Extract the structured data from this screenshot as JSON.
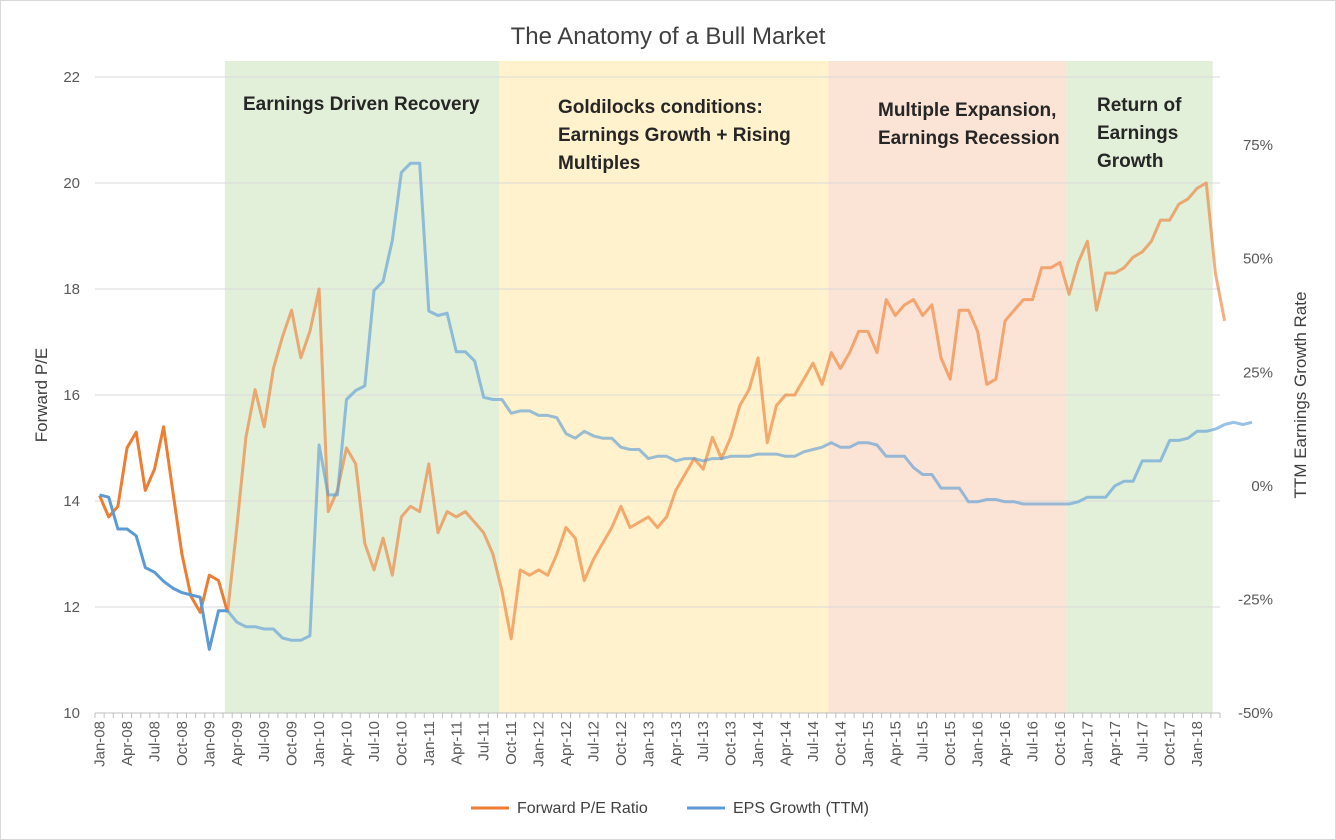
{
  "chart_data": {
    "type": "line",
    "title": "The Anatomy of a Bull Market",
    "ylabel": "Forward P/E",
    "y2label": "TTM Earnings Growth Rate",
    "ylim": [
      10,
      22
    ],
    "y2lim": [
      -0.5,
      0.9
    ],
    "yticks": [
      "10",
      "12",
      "14",
      "16",
      "18",
      "20",
      "22"
    ],
    "y2ticks": [
      "-50%",
      "-25%",
      "0%",
      "25%",
      "50%",
      "75%"
    ],
    "x_start": "Jan-08",
    "x_end": "Mar-18",
    "xticks": [
      "Jan-08",
      "Apr-08",
      "Jul-08",
      "Oct-08",
      "Jan-09",
      "Apr-09",
      "Jul-09",
      "Oct-09",
      "Jan-10",
      "Apr-10",
      "Jul-10",
      "Oct-10",
      "Jan-11",
      "Apr-11",
      "Jul-11",
      "Oct-11",
      "Jan-12",
      "Apr-12",
      "Jul-12",
      "Oct-12",
      "Jan-13",
      "Apr-13",
      "Jul-13",
      "Oct-13",
      "Jan-14",
      "Apr-14",
      "Jul-14",
      "Oct-14",
      "Jan-15",
      "Apr-15",
      "Jul-15",
      "Oct-15",
      "Jan-16",
      "Apr-16",
      "Jul-16",
      "Oct-16",
      "Jan-17",
      "Apr-17",
      "Jul-17",
      "Oct-17",
      "Jan-18"
    ],
    "legend_position": "bottom",
    "regions": [
      {
        "label": "Earnings Driven Recovery",
        "start": "Mar-09",
        "end": "Sep-11",
        "color": "#e2efd9"
      },
      {
        "label": "Goldilocks conditions: Earnings Growth + Rising Multiples",
        "start": "Sep-11",
        "end": "Sep-14",
        "color": "#fff2cc"
      },
      {
        "label": "Multiple Expansion, Earnings Recession",
        "start": "Sep-14",
        "end": "Nov-16",
        "color": "#fbe4d5"
      },
      {
        "label": "Return of Earnings Growth",
        "start": "Nov-16",
        "end": "Mar-18",
        "color": "#e2efd9"
      }
    ],
    "series": [
      {
        "name": "Forward P/E Ratio",
        "color": "#ed7d31",
        "axis": "left",
        "values": [
          14.1,
          13.7,
          13.9,
          15.0,
          15.3,
          14.2,
          14.6,
          15.4,
          14.2,
          13.0,
          12.2,
          11.9,
          12.6,
          12.5,
          11.9,
          13.5,
          15.2,
          16.1,
          15.4,
          16.5,
          17.1,
          17.6,
          16.7,
          17.2,
          18.0,
          13.8,
          14.2,
          15.0,
          14.7,
          13.2,
          12.7,
          13.3,
          12.6,
          13.7,
          13.9,
          13.8,
          14.7,
          13.4,
          13.8,
          13.7,
          13.8,
          13.6,
          13.4,
          13.0,
          12.3,
          11.4,
          12.7,
          12.6,
          12.7,
          12.6,
          13.0,
          13.5,
          13.3,
          12.5,
          12.9,
          13.2,
          13.5,
          13.9,
          13.5,
          13.6,
          13.7,
          13.5,
          13.7,
          14.2,
          14.5,
          14.8,
          14.6,
          15.2,
          14.8,
          15.2,
          15.8,
          16.1,
          16.7,
          15.1,
          15.8,
          16.0,
          16.0,
          16.3,
          16.6,
          16.2,
          16.8,
          16.5,
          16.8,
          17.2,
          17.2,
          16.8,
          17.8,
          17.5,
          17.7,
          17.8,
          17.5,
          17.7,
          16.7,
          16.3,
          17.6,
          17.6,
          17.2,
          16.2,
          16.3,
          17.4,
          17.6,
          17.8,
          17.8,
          18.4,
          18.4,
          18.5,
          17.9,
          18.5,
          18.9,
          17.6,
          18.3,
          18.3,
          18.4,
          18.6,
          18.7,
          18.9,
          19.3,
          19.3,
          19.6,
          19.7,
          19.9,
          20.0,
          18.3,
          17.4
        ]
      },
      {
        "name": "EPS Growth (TTM)",
        "color": "#5b9bd5",
        "axis": "right",
        "values": [
          -0.02,
          -0.025,
          -0.095,
          -0.095,
          -0.11,
          -0.18,
          -0.19,
          -0.21,
          -0.225,
          -0.235,
          -0.24,
          -0.245,
          -0.36,
          -0.275,
          -0.275,
          -0.3,
          -0.31,
          -0.31,
          -0.315,
          -0.315,
          -0.335,
          -0.34,
          -0.34,
          -0.33,
          0.09,
          -0.02,
          -0.02,
          0.19,
          0.21,
          0.22,
          0.43,
          0.45,
          0.54,
          0.69,
          0.71,
          0.71,
          0.385,
          0.375,
          0.38,
          0.295,
          0.295,
          0.275,
          0.195,
          0.19,
          0.19,
          0.16,
          0.165,
          0.165,
          0.155,
          0.155,
          0.15,
          0.115,
          0.105,
          0.12,
          0.11,
          0.105,
          0.105,
          0.085,
          0.08,
          0.08,
          0.06,
          0.065,
          0.065,
          0.055,
          0.06,
          0.06,
          0.055,
          0.06,
          0.06,
          0.065,
          0.065,
          0.065,
          0.07,
          0.07,
          0.07,
          0.065,
          0.065,
          0.075,
          0.08,
          0.085,
          0.095,
          0.085,
          0.085,
          0.095,
          0.095,
          0.09,
          0.065,
          0.065,
          0.065,
          0.04,
          0.025,
          0.025,
          -0.005,
          -0.005,
          -0.005,
          -0.035,
          -0.035,
          -0.03,
          -0.03,
          -0.035,
          -0.035,
          -0.04,
          -0.04,
          -0.04,
          -0.04,
          -0.04,
          -0.04,
          -0.035,
          -0.025,
          -0.025,
          -0.025,
          0.0,
          0.01,
          0.01,
          0.055,
          0.055,
          0.055,
          0.1,
          0.1,
          0.105,
          0.12,
          0.12,
          0.125,
          0.135,
          0.14,
          0.135,
          0.14
        ]
      }
    ]
  }
}
